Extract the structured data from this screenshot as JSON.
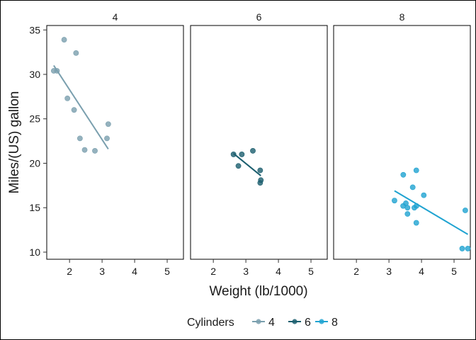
{
  "chart_data": {
    "type": "scatter",
    "facet_by": "cylinders",
    "xlabel": "Weight (lb/1000)",
    "ylabel": "Miles/(US) gallon",
    "xlim": [
      1.3,
      5.5
    ],
    "ylim": [
      9.2,
      35.5
    ],
    "x_ticks": [
      2,
      3,
      4,
      5
    ],
    "y_ticks": [
      10,
      15,
      20,
      25,
      30,
      35
    ],
    "legend": {
      "title": "Cylinders",
      "position": "bottom"
    },
    "series": [
      {
        "name": "4",
        "facet_label": "4",
        "color": "#7A9FAE",
        "points": [
          [
            1.835,
            33.9
          ],
          [
            2.2,
            32.4
          ],
          [
            1.515,
            30.4
          ],
          [
            1.615,
            30.4
          ],
          [
            1.935,
            27.3
          ],
          [
            2.14,
            26.0
          ],
          [
            3.19,
            24.4
          ],
          [
            2.32,
            22.8
          ],
          [
            3.15,
            22.8
          ],
          [
            2.465,
            21.5
          ],
          [
            2.78,
            21.4
          ]
        ],
        "fit": [
          [
            1.515,
            31.0
          ],
          [
            3.19,
            21.6
          ]
        ]
      },
      {
        "name": "6",
        "facet_label": "6",
        "color": "#1B5E6E",
        "points": [
          [
            2.62,
            21.0
          ],
          [
            2.875,
            21.0
          ],
          [
            3.215,
            21.4
          ],
          [
            2.77,
            19.7
          ],
          [
            3.44,
            19.2
          ],
          [
            3.44,
            17.8
          ],
          [
            3.46,
            18.1
          ]
        ],
        "fit": [
          [
            2.62,
            21.1
          ],
          [
            3.46,
            18.6
          ]
        ]
      },
      {
        "name": "8",
        "facet_label": "8",
        "color": "#1FA3D1",
        "points": [
          [
            3.44,
            18.7
          ],
          [
            3.84,
            19.2
          ],
          [
            3.73,
            17.3
          ],
          [
            3.17,
            15.8
          ],
          [
            3.52,
            15.5
          ],
          [
            3.435,
            15.2
          ],
          [
            3.845,
            15.2
          ],
          [
            3.78,
            15.0
          ],
          [
            3.57,
            14.3
          ],
          [
            5.345,
            14.7
          ],
          [
            4.07,
            16.4
          ],
          [
            3.57,
            15.0
          ],
          [
            3.84,
            13.3
          ],
          [
            5.25,
            10.4
          ],
          [
            5.424,
            10.4
          ]
        ],
        "fit": [
          [
            3.17,
            16.9
          ],
          [
            5.424,
            12.0
          ]
        ]
      }
    ]
  }
}
